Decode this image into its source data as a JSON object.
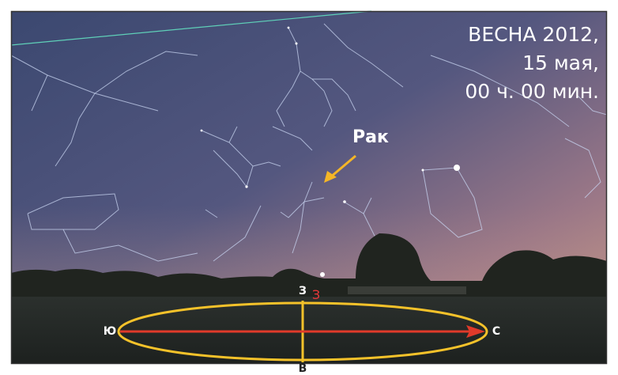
{
  "caption": {
    "line1": "ВЕСНА 2012,",
    "line2": "15 мая,",
    "line3": "00 ч. 00 мин."
  },
  "constellation_label": "Рак",
  "compass": {
    "top": "З",
    "top_marker": "З",
    "left": "Ю",
    "right": "С",
    "bottom": "В"
  }
}
